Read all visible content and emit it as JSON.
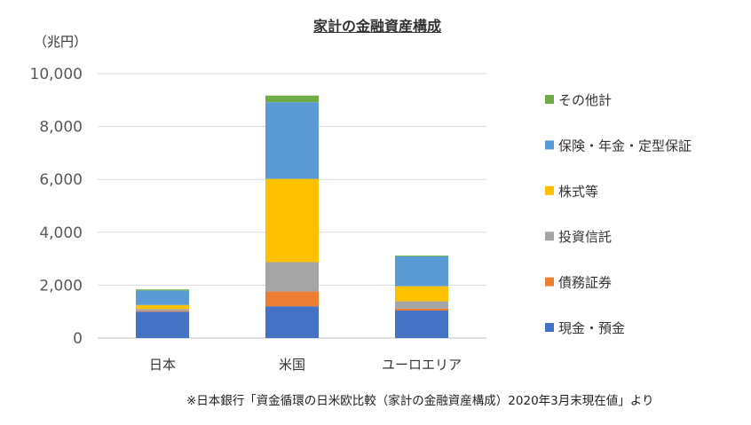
{
  "chart_data": {
    "type": "bar",
    "stacked": true,
    "title": "家計の金融資産構成",
    "unit_label": "（兆円）",
    "categories": [
      "日本",
      "米国",
      "ユーロエリア"
    ],
    "ylim": [
      0,
      10000
    ],
    "yticks": [
      0,
      2000,
      4000,
      6000,
      8000,
      10000
    ],
    "ytick_labels": [
      "0",
      "2,000",
      "4,000",
      "6,000",
      "8,000",
      "10,000"
    ],
    "grid": true,
    "legend_position": "right",
    "series": [
      {
        "name": "現金・預金",
        "color": "#4472C4",
        "values": [
          1000,
          1200,
          1040
        ]
      },
      {
        "name": "債務証券",
        "color": "#ED7D31",
        "values": [
          30,
          560,
          70
        ]
      },
      {
        "name": "投資信託",
        "color": "#A5A5A5",
        "values": [
          70,
          1110,
          280
        ]
      },
      {
        "name": "株式等",
        "color": "#FFC000",
        "values": [
          150,
          3150,
          570
        ]
      },
      {
        "name": "保険・年金・定型保証",
        "color": "#5B9BD5",
        "values": [
          550,
          2900,
          1130
        ]
      },
      {
        "name": "その他計",
        "color": "#70AD47",
        "values": [
          40,
          250,
          30
        ]
      }
    ]
  },
  "source_note": "※日本銀行「資金循環の日米欧比較（家計の金融資産構成）2020年3月末現在値」より"
}
